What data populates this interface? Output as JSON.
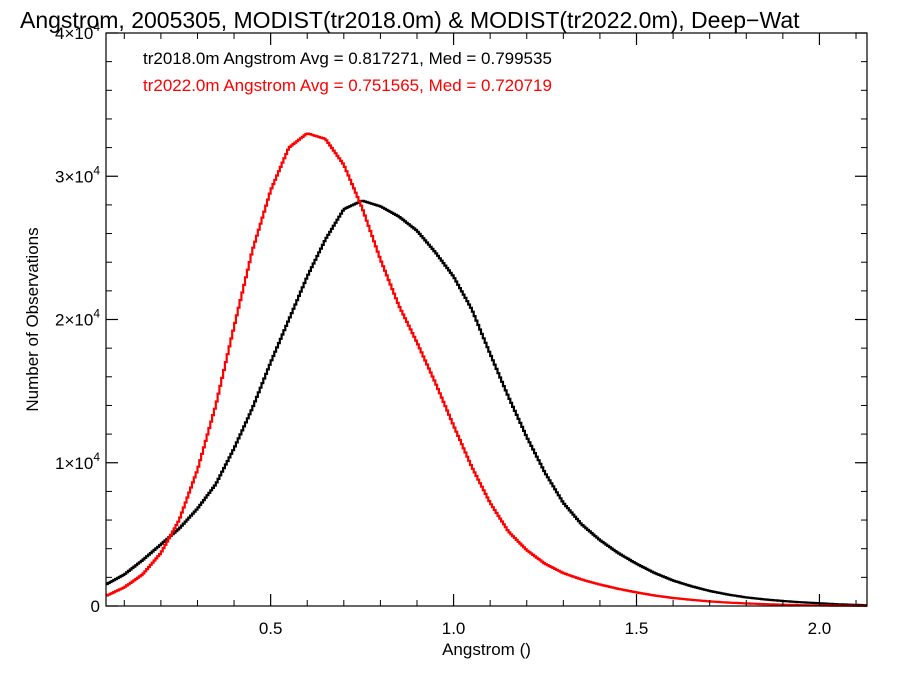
{
  "chart_data": {
    "type": "line",
    "title": "Angstrom, 2005305, MODIST(tr2018.0m) & MODIST(tr2022.0m), Deep−Wat",
    "xlabel": "Angstrom ()",
    "ylabel": "Number of Observations",
    "xlim": [
      0.05,
      2.13
    ],
    "ylim": [
      0,
      40000
    ],
    "x_ticks": [
      {
        "value": 0.5,
        "label": "0.5"
      },
      {
        "value": 1.0,
        "label": "1.0"
      },
      {
        "value": 1.5,
        "label": "1.5"
      },
      {
        "value": 2.0,
        "label": "2.0"
      }
    ],
    "y_ticks": [
      {
        "value": 0,
        "label": "0",
        "exp": ""
      },
      {
        "value": 10000,
        "label": "1×10",
        "exp": "4"
      },
      {
        "value": 20000,
        "label": "2×10",
        "exp": "4"
      },
      {
        "value": 30000,
        "label": "3×10",
        "exp": "4"
      },
      {
        "value": 40000,
        "label": "4×10",
        "exp": "4"
      }
    ],
    "step": "histogram",
    "grid": false,
    "series": [
      {
        "name": "tr2018.0m",
        "color": "#000000",
        "annotation": "tr2018.0m Angstrom Avg = 0.817271, Med = 0.799535",
        "x": [
          0.05,
          0.1,
          0.15,
          0.2,
          0.25,
          0.3,
          0.35,
          0.4,
          0.45,
          0.5,
          0.55,
          0.6,
          0.65,
          0.7,
          0.75,
          0.8,
          0.85,
          0.9,
          0.95,
          1.0,
          1.05,
          1.1,
          1.15,
          1.2,
          1.25,
          1.3,
          1.35,
          1.4,
          1.45,
          1.5,
          1.55,
          1.6,
          1.65,
          1.7,
          1.75,
          1.8,
          1.85,
          1.9,
          1.95,
          2.0,
          2.05,
          2.1,
          2.13
        ],
        "values": [
          1500,
          2200,
          3200,
          4300,
          5400,
          6800,
          8500,
          11000,
          13800,
          17000,
          20000,
          23000,
          25600,
          27700,
          28300,
          27900,
          27200,
          26200,
          24700,
          23000,
          20700,
          17600,
          14600,
          11800,
          9300,
          7200,
          5700,
          4600,
          3700,
          2950,
          2300,
          1780,
          1380,
          1050,
          800,
          600,
          460,
          350,
          260,
          190,
          120,
          80,
          50
        ]
      },
      {
        "name": "tr2022.0m",
        "color": "#ff0000",
        "annotation": "tr2022.0m Angstrom Avg = 0.751565, Med = 0.720719",
        "x": [
          0.05,
          0.1,
          0.15,
          0.2,
          0.25,
          0.3,
          0.35,
          0.4,
          0.45,
          0.5,
          0.55,
          0.6,
          0.65,
          0.7,
          0.75,
          0.8,
          0.85,
          0.9,
          0.95,
          1.0,
          1.05,
          1.1,
          1.15,
          1.2,
          1.25,
          1.3,
          1.35,
          1.4,
          1.45,
          1.5,
          1.55,
          1.6,
          1.65,
          1.7,
          1.75,
          1.8,
          1.85,
          1.9,
          1.95,
          2.0,
          2.05,
          2.1,
          2.13
        ],
        "values": [
          700,
          1300,
          2200,
          3700,
          6000,
          9500,
          14000,
          19500,
          24800,
          29000,
          32000,
          33000,
          32600,
          30800,
          27800,
          24200,
          21000,
          18400,
          15600,
          12600,
          9700,
          7200,
          5200,
          3900,
          2950,
          2300,
          1850,
          1500,
          1200,
          950,
          730,
          560,
          430,
          320,
          240,
          180,
          130,
          90,
          60,
          40,
          25,
          15,
          10
        ]
      }
    ]
  }
}
